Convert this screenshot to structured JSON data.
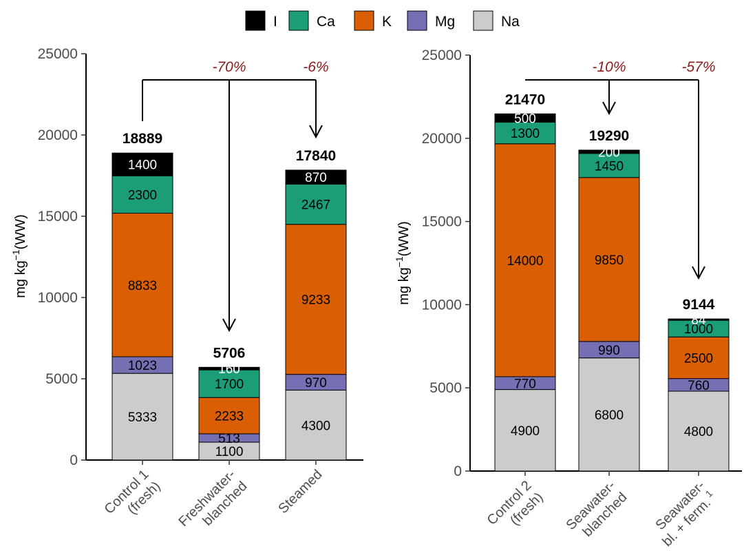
{
  "legend": {
    "position": "top",
    "entries": [
      {
        "name": "I",
        "color": "#000000"
      },
      {
        "name": "Ca",
        "color": "#1b9e77"
      },
      {
        "name": "K",
        "color": "#d95f02"
      },
      {
        "name": "Mg",
        "color": "#7570b3"
      },
      {
        "name": "Na",
        "color": "#cccccc"
      }
    ]
  },
  "chart_data": [
    {
      "type": "bar",
      "stacked": true,
      "ylabel_main": "mg kg",
      "ylabel_sup": "−1",
      "ylabel_tail": "(WW)",
      "ylim": [
        0,
        25000
      ],
      "yticks": [
        "0",
        "5000",
        "10000",
        "15000",
        "20000",
        "25000"
      ],
      "categories": [
        {
          "line1": "Control 1",
          "line2": "(fresh)"
        },
        {
          "line1": "Freshwater-",
          "line2": "blanched"
        },
        {
          "line1": "Steamed",
          "line2": ""
        }
      ],
      "series": [
        {
          "name": "Na",
          "values": [
            5333,
            1100,
            4300
          ]
        },
        {
          "name": "Mg",
          "values": [
            1023,
            513,
            970
          ]
        },
        {
          "name": "K",
          "values": [
            8833,
            2233,
            9233
          ]
        },
        {
          "name": "Ca",
          "values": [
            2300,
            1700,
            2467
          ]
        },
        {
          "name": "I",
          "values": [
            1400,
            160,
            870
          ]
        }
      ],
      "totals": [
        "18889",
        "5706",
        "17840"
      ],
      "annotations": [
        {
          "text": "-70%",
          "from": 0,
          "to": 1
        },
        {
          "text": "-6%",
          "from": 0,
          "to": 2
        }
      ]
    },
    {
      "type": "bar",
      "stacked": true,
      "ylabel_main": "mg kg",
      "ylabel_sup": "−1",
      "ylabel_tail": "(WW)",
      "ylim": [
        0,
        25000
      ],
      "yticks": [
        "0",
        "5000",
        "10000",
        "15000",
        "20000",
        "25000"
      ],
      "categories": [
        {
          "line1": "Control 2",
          "line2": "(fresh)"
        },
        {
          "line1": "Seawater-",
          "line2": "blanched"
        },
        {
          "line1": "Seawater-",
          "line2": "bl. + ferm.",
          "sup": "1"
        }
      ],
      "series": [
        {
          "name": "Na",
          "values": [
            4900,
            6800,
            4800
          ]
        },
        {
          "name": "Mg",
          "values": [
            770,
            990,
            760
          ]
        },
        {
          "name": "K",
          "values": [
            14000,
            9850,
            2500
          ]
        },
        {
          "name": "Ca",
          "values": [
            1300,
            1450,
            1000
          ]
        },
        {
          "name": "I",
          "values": [
            500,
            200,
            84
          ]
        }
      ],
      "totals": [
        "21470",
        "19290",
        "9144"
      ],
      "annotations": [
        {
          "text": "-10%",
          "from": 0,
          "to": 1
        },
        {
          "text": "-57%",
          "from": 0,
          "to": 2
        }
      ]
    }
  ]
}
